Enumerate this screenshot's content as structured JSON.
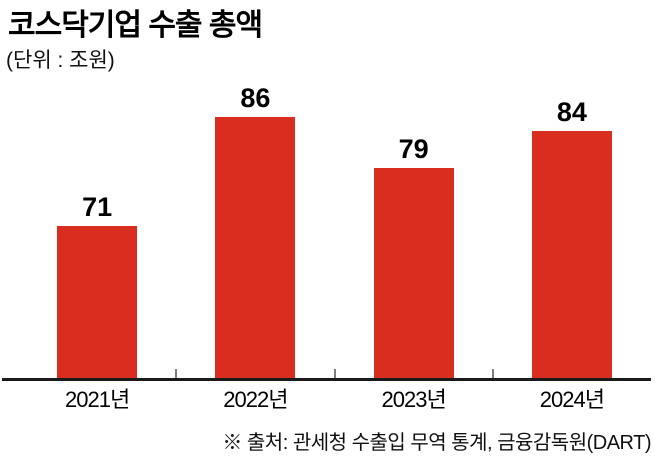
{
  "chart_data": {
    "type": "bar",
    "title": "코스닥기업 수출 총액",
    "subtitle": "(단위 : 조원)",
    "unit": "조원",
    "categories": [
      "2021년",
      "2022년",
      "2023년",
      "2024년"
    ],
    "values": [
      71,
      86,
      79,
      84
    ],
    "value_labels_shown": true,
    "bar_color": "#d92d1f",
    "axis_color": "#1a1a1a",
    "tick_color": "#7d7d7d",
    "ylim": [
      50,
      90
    ],
    "baseline_truncated": true,
    "grid": false,
    "legend": "none",
    "xlabel": "",
    "ylabel": "",
    "source": "※ 출처: 관세청 수출입 무역 통계, 금융감독원(DART)"
  }
}
